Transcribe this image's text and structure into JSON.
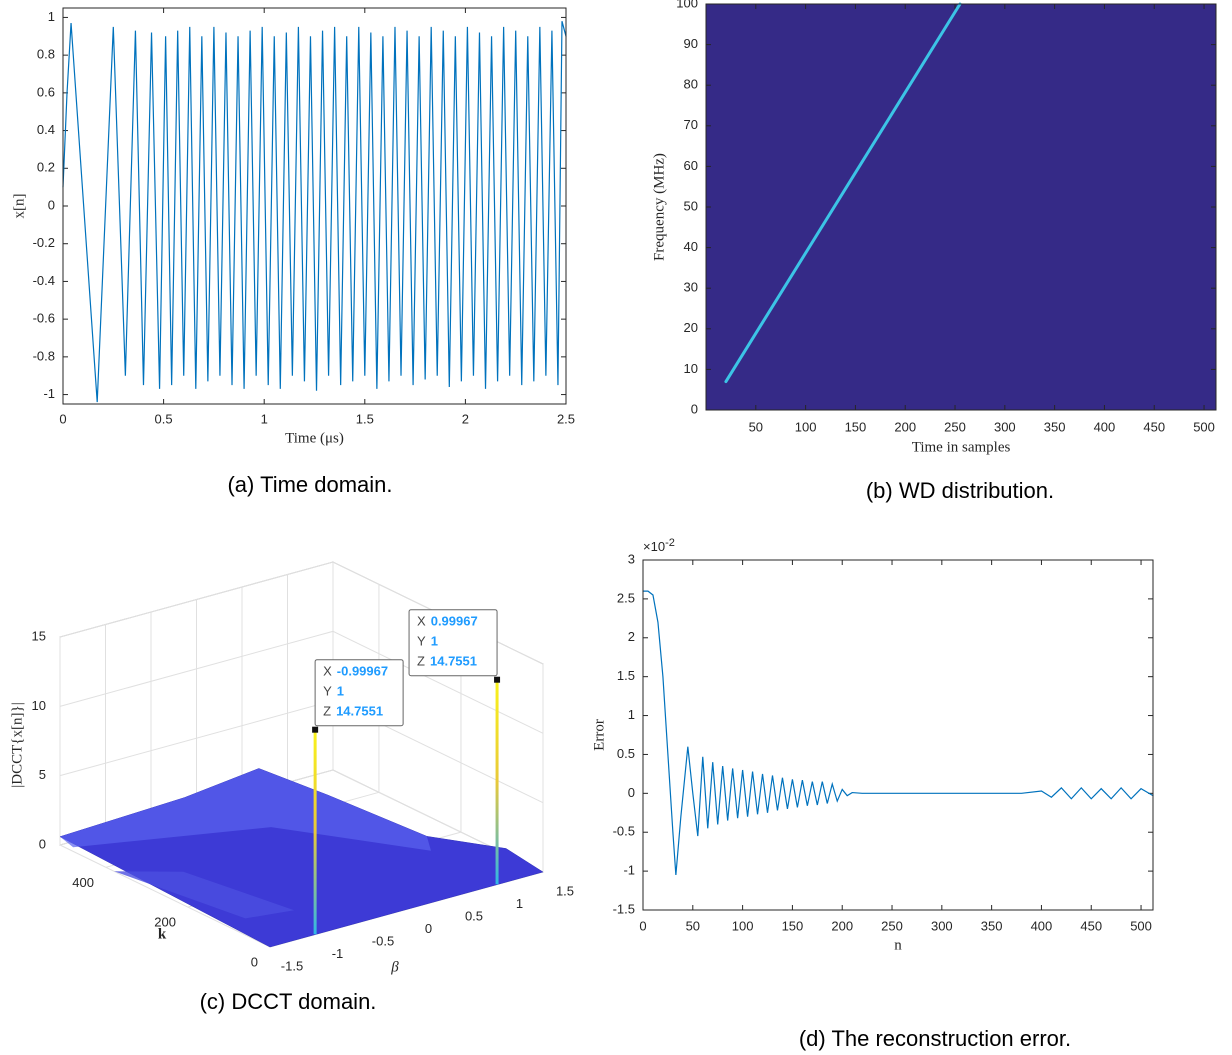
{
  "chart_data": [
    {
      "type": "line",
      "xlabel": "Time (μs)",
      "ylabel": "x[n]",
      "caption": "(a) Time domain.",
      "x": [
        0,
        0.02,
        0.04,
        0.17,
        0.25,
        0.31,
        0.36,
        0.4,
        0.44,
        0.48,
        0.51,
        0.54,
        0.57,
        0.6,
        0.63,
        0.66,
        0.69,
        0.72,
        0.75,
        0.78,
        0.81,
        0.84,
        0.87,
        0.9,
        0.93,
        0.96,
        0.99,
        1.02,
        1.05,
        1.08,
        1.11,
        1.14,
        1.17,
        1.2,
        1.23,
        1.26,
        1.29,
        1.32,
        1.35,
        1.38,
        1.41,
        1.44,
        1.47,
        1.5,
        1.53,
        1.56,
        1.59,
        1.62,
        1.65,
        1.68,
        1.71,
        1.74,
        1.77,
        1.8,
        1.83,
        1.86,
        1.89,
        1.92,
        1.95,
        1.98,
        2.01,
        2.04,
        2.07,
        2.1,
        2.13,
        2.16,
        2.19,
        2.22,
        2.25,
        2.28,
        2.31,
        2.34,
        2.37,
        2.4,
        2.43,
        2.46,
        2.48,
        2.5
      ],
      "series": [
        {
          "color": "#0072bd",
          "values": [
            0.1,
            0.6,
            0.97,
            -1.04,
            0.95,
            -0.9,
            0.93,
            -0.95,
            0.92,
            -0.97,
            0.9,
            -0.95,
            0.93,
            -0.9,
            0.95,
            -0.97,
            0.9,
            -0.93,
            0.95,
            -0.9,
            0.92,
            -0.95,
            0.9,
            -0.97,
            0.93,
            -0.9,
            0.95,
            -0.95,
            0.9,
            -0.97,
            0.92,
            -0.9,
            0.95,
            -0.93,
            0.9,
            -0.98,
            0.93,
            -0.9,
            0.95,
            -0.95,
            0.9,
            -0.93,
            0.95,
            -0.9,
            0.92,
            -0.97,
            0.9,
            -0.93,
            0.95,
            -0.9,
            0.93,
            -0.95,
            0.9,
            -0.92,
            0.95,
            -0.9,
            0.93,
            -0.96,
            0.9,
            -0.93,
            0.95,
            -0.9,
            0.92,
            -0.97,
            0.9,
            -0.93,
            0.95,
            -0.9,
            0.93,
            -0.95,
            0.9,
            -0.93,
            0.95,
            -0.9,
            0.93,
            -0.95,
            0.98,
            0.9
          ]
        }
      ],
      "xlim": [
        0,
        2.5
      ],
      "ylim": [
        -1.05,
        1.05
      ],
      "xticks": [
        0,
        0.5,
        1,
        1.5,
        2,
        2.5
      ],
      "yticks": [
        -1,
        -0.8,
        -0.6,
        -0.4,
        -0.2,
        0,
        0.2,
        0.4,
        0.6,
        0.8,
        1
      ]
    },
    {
      "type": "heatmap",
      "xlabel": "Time in samples",
      "ylabel": "Frequency (MHz)",
      "caption": "(b) WD distribution.",
      "background_color": "#352a87",
      "x": [
        20,
        255
      ],
      "series": [
        {
          "color": "#3cc4e6",
          "values": [
            7,
            100
          ]
        }
      ],
      "xlim": [
        0,
        512
      ],
      "ylim": [
        0,
        100
      ],
      "xticks": [
        50,
        100,
        150,
        200,
        250,
        300,
        350,
        400,
        450,
        500
      ],
      "yticks": [
        0,
        10,
        20,
        30,
        40,
        50,
        60,
        70,
        80,
        90,
        100
      ]
    },
    {
      "type": "surface",
      "xlabel": "β",
      "ylabel": "k",
      "zlabel": "|DCCT{x[n]}|",
      "caption": "(c) DCCT domain.",
      "xlim": [
        -1.5,
        1.5
      ],
      "ylim": [
        0,
        512
      ],
      "zlim": [
        0,
        15
      ],
      "xticks": [
        -1.5,
        -1,
        -0.5,
        0,
        0.5,
        1,
        1.5
      ],
      "yticks": [
        0,
        200,
        400
      ],
      "zticks": [
        0,
        5,
        10,
        15
      ],
      "grid": true,
      "datatip_labels": [
        "X",
        "Y",
        "Z"
      ],
      "datatips": [
        {
          "x": -0.99967,
          "y": 1,
          "z": 14.7551
        },
        {
          "x": 0.99967,
          "y": 1,
          "z": 14.7551
        }
      ]
    },
    {
      "type": "line",
      "xlabel": "n",
      "ylabel": "Error",
      "caption": "(d) The reconstruction error.",
      "y_multiplier": "×10",
      "y_exponent": -2,
      "x": [
        0,
        5,
        10,
        15,
        20,
        25,
        30,
        33,
        38,
        45,
        50,
        55,
        60,
        65,
        70,
        75,
        80,
        85,
        90,
        95,
        100,
        105,
        110,
        115,
        120,
        125,
        130,
        135,
        140,
        145,
        150,
        155,
        160,
        165,
        170,
        175,
        180,
        185,
        190,
        195,
        200,
        205,
        210,
        220,
        300,
        380,
        400,
        410,
        420,
        430,
        440,
        450,
        460,
        470,
        480,
        490,
        500,
        512
      ],
      "series": [
        {
          "color": "#0072bd",
          "values": [
            2.6,
            2.6,
            2.55,
            2.2,
            1.5,
            0.5,
            -0.5,
            -1.05,
            -0.3,
            0.6,
            0,
            -0.55,
            0.47,
            -0.45,
            0.4,
            -0.4,
            0.35,
            -0.35,
            0.32,
            -0.32,
            0.3,
            -0.3,
            0.28,
            -0.27,
            0.25,
            -0.25,
            0.23,
            -0.22,
            0.2,
            -0.2,
            0.18,
            -0.18,
            0.17,
            -0.16,
            0.15,
            -0.15,
            0.15,
            -0.13,
            0.12,
            -0.1,
            0.05,
            -0.03,
            0.01,
            0,
            0,
            0,
            0.03,
            -0.05,
            0.07,
            -0.07,
            0.07,
            -0.07,
            0.06,
            -0.07,
            0.07,
            -0.07,
            0.06,
            -0.03
          ]
        }
      ],
      "xlim": [
        0,
        512
      ],
      "ylim": [
        -1.5,
        3
      ],
      "xticks": [
        0,
        50,
        100,
        150,
        200,
        250,
        300,
        350,
        400,
        450,
        500
      ],
      "yticks": [
        -1.5,
        -1,
        -0.5,
        0,
        0.5,
        1,
        1.5,
        2,
        2.5,
        3
      ]
    }
  ]
}
